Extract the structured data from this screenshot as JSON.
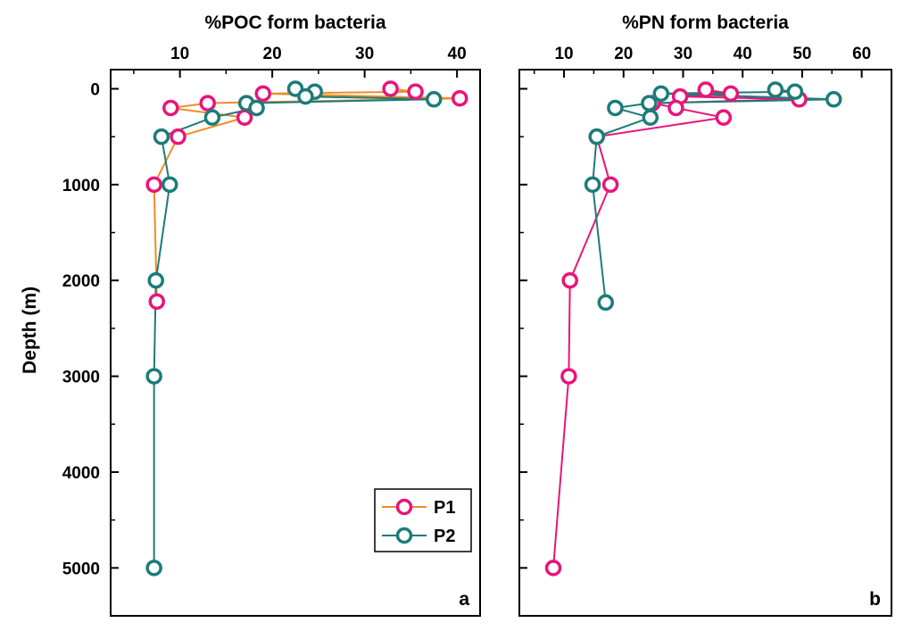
{
  "chart_data": [
    {
      "type": "line",
      "panel_label": "a",
      "title": "%POC form bacteria",
      "xlabel": "%POC form bacteria",
      "ylabel": "Depth (m)",
      "xlim": [
        2.5,
        42.5
      ],
      "ylim": [
        5500,
        -200
      ],
      "xticks": [
        10,
        20,
        30,
        40
      ],
      "yticks": [
        0,
        1000,
        2000,
        3000,
        4000,
        5000
      ],
      "grid": false,
      "legend_position": "bottom-right",
      "series": [
        {
          "name": "P1",
          "line_color": "#f08c28",
          "marker_color": "#e8157a",
          "points": [
            {
              "x": 32.8,
              "y": 0
            },
            {
              "x": 35.5,
              "y": 30
            },
            {
              "x": 19.0,
              "y": 50
            },
            {
              "x": 40.3,
              "y": 100
            },
            {
              "x": 13.0,
              "y": 150
            },
            {
              "x": 9.0,
              "y": 200
            },
            {
              "x": 17.0,
              "y": 300
            },
            {
              "x": 9.8,
              "y": 500
            },
            {
              "x": 7.2,
              "y": 1000
            },
            {
              "x": 7.5,
              "y": 2220
            }
          ]
        },
        {
          "name": "P2",
          "line_color": "#1b7c78",
          "marker_color": "#1b7c78",
          "points": [
            {
              "x": 22.5,
              "y": 0
            },
            {
              "x": 24.6,
              "y": 30
            },
            {
              "x": 23.6,
              "y": 80
            },
            {
              "x": 37.5,
              "y": 110
            },
            {
              "x": 17.2,
              "y": 150
            },
            {
              "x": 18.3,
              "y": 200
            },
            {
              "x": 13.5,
              "y": 300
            },
            {
              "x": 8.0,
              "y": 500
            },
            {
              "x": 8.9,
              "y": 1000
            },
            {
              "x": 7.4,
              "y": 2000
            },
            {
              "x": 7.2,
              "y": 3000
            },
            {
              "x": 7.2,
              "y": 5000
            }
          ]
        }
      ]
    },
    {
      "type": "line",
      "panel_label": "b",
      "title": "%PN form bacteria",
      "xlabel": "%PN form bacteria",
      "ylabel": "",
      "xlim": [
        2.5,
        65
      ],
      "ylim": [
        5500,
        -200
      ],
      "xticks": [
        10,
        20,
        30,
        40,
        50,
        60
      ],
      "yticks": [
        0,
        1000,
        2000,
        3000,
        4000,
        5000
      ],
      "grid": false,
      "series": [
        {
          "name": "P1",
          "line_color": "#e8157a",
          "marker_color": "#e8157a",
          "points": [
            {
              "x": 33.8,
              "y": 10
            },
            {
              "x": 38.0,
              "y": 50
            },
            {
              "x": 29.5,
              "y": 80
            },
            {
              "x": 49.5,
              "y": 110
            },
            {
              "x": 24.9,
              "y": 150
            },
            {
              "x": 28.8,
              "y": 200
            },
            {
              "x": 36.8,
              "y": 300
            },
            {
              "x": 15.5,
              "y": 500
            },
            {
              "x": 17.8,
              "y": 1000
            },
            {
              "x": 11.0,
              "y": 2000
            },
            {
              "x": 10.8,
              "y": 3000
            },
            {
              "x": 8.2,
              "y": 5000
            }
          ]
        },
        {
          "name": "P2",
          "line_color": "#1b7c78",
          "marker_color": "#1b7c78",
          "points": [
            {
              "x": 45.5,
              "y": 10
            },
            {
              "x": 48.8,
              "y": 30
            },
            {
              "x": 26.3,
              "y": 50
            },
            {
              "x": 55.3,
              "y": 110
            },
            {
              "x": 24.3,
              "y": 150
            },
            {
              "x": 18.6,
              "y": 200
            },
            {
              "x": 24.5,
              "y": 300
            },
            {
              "x": 15.5,
              "y": 500
            },
            {
              "x": 14.8,
              "y": 1000
            },
            {
              "x": 17.0,
              "y": 2230
            }
          ]
        }
      ]
    }
  ],
  "legend": {
    "entries": [
      {
        "label": "P1",
        "line_color": "#f08c28",
        "marker_color": "#e8157a"
      },
      {
        "label": "P2",
        "line_color": "#1b7c78",
        "marker_color": "#1b7c78"
      }
    ]
  }
}
